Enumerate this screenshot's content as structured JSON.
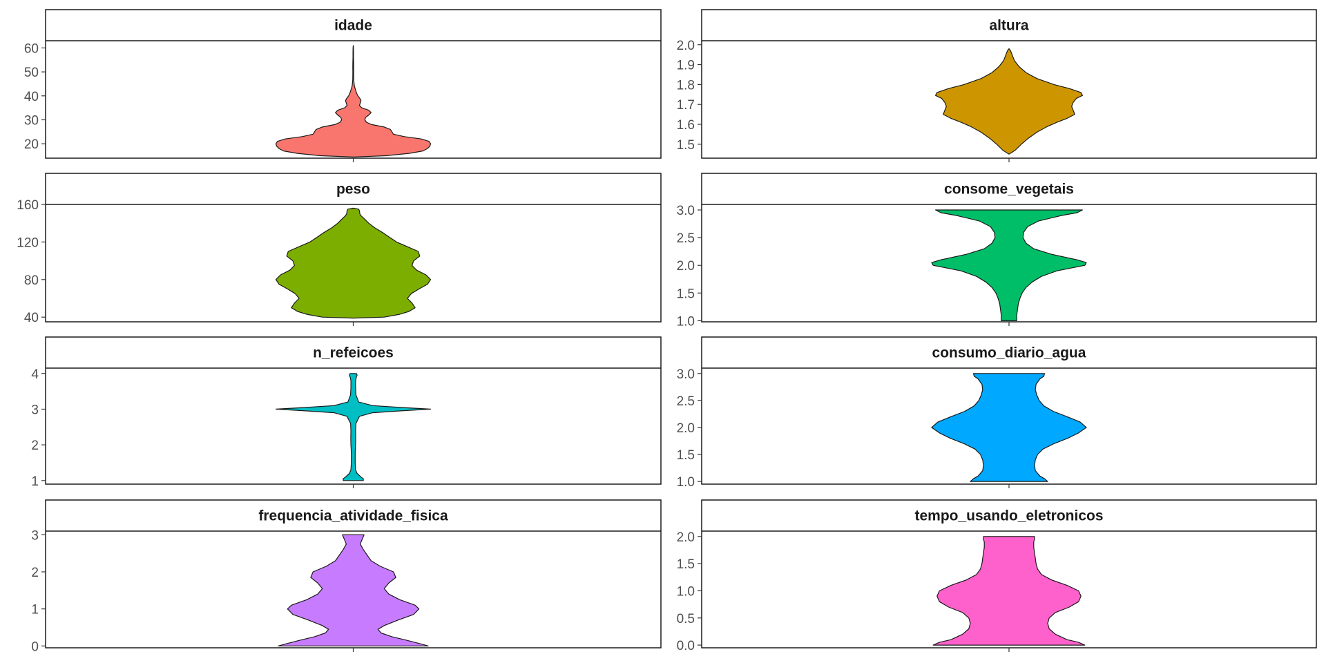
{
  "chart_data": [
    {
      "type": "violin",
      "title": "idade",
      "fill": "#F8766D",
      "yticks": [
        20,
        30,
        40,
        50,
        60
      ],
      "ylim": [
        14,
        63
      ],
      "profile": [
        [
          14.5,
          0
        ],
        [
          15,
          0.42
        ],
        [
          16,
          0.72
        ],
        [
          17,
          0.9
        ],
        [
          18,
          0.96
        ],
        [
          19,
          0.99
        ],
        [
          20,
          1
        ],
        [
          21,
          0.98
        ],
        [
          22,
          0.88
        ],
        [
          23,
          0.66
        ],
        [
          24,
          0.52
        ],
        [
          25,
          0.5
        ],
        [
          26,
          0.48
        ],
        [
          27,
          0.4
        ],
        [
          28,
          0.24
        ],
        [
          29,
          0.17
        ],
        [
          30,
          0.15
        ],
        [
          31,
          0.16
        ],
        [
          32,
          0.2
        ],
        [
          33,
          0.23
        ],
        [
          34,
          0.2
        ],
        [
          35,
          0.11
        ],
        [
          36,
          0.08
        ],
        [
          37,
          0.09
        ],
        [
          38,
          0.1
        ],
        [
          39,
          0.085
        ],
        [
          40,
          0.06
        ],
        [
          41,
          0.045
        ],
        [
          42,
          0.035
        ],
        [
          43,
          0.025
        ],
        [
          44,
          0.015
        ],
        [
          45,
          0.012
        ],
        [
          46,
          0.008
        ],
        [
          47,
          0.006
        ],
        [
          48,
          0.006
        ],
        [
          50,
          0.005
        ],
        [
          52,
          0.006
        ],
        [
          54,
          0.005
        ],
        [
          56,
          0.004
        ],
        [
          58,
          0.004
        ],
        [
          60,
          0.003
        ],
        [
          61,
          0
        ]
      ]
    },
    {
      "type": "violin",
      "title": "altura",
      "fill": "#CD9600",
      "yticks": [
        1.5,
        1.6,
        1.7,
        1.8,
        1.9,
        2.0
      ],
      "ylim": [
        1.43,
        2.02
      ],
      "profile": [
        [
          1.45,
          0
        ],
        [
          1.47,
          0.08
        ],
        [
          1.5,
          0.16
        ],
        [
          1.53,
          0.25
        ],
        [
          1.56,
          0.36
        ],
        [
          1.59,
          0.5
        ],
        [
          1.61,
          0.62
        ],
        [
          1.63,
          0.75
        ],
        [
          1.65,
          0.85
        ],
        [
          1.67,
          0.83
        ],
        [
          1.69,
          0.81
        ],
        [
          1.71,
          0.83
        ],
        [
          1.73,
          0.87
        ],
        [
          1.745,
          0.95
        ],
        [
          1.76,
          0.93
        ],
        [
          1.78,
          0.78
        ],
        [
          1.8,
          0.58
        ],
        [
          1.83,
          0.36
        ],
        [
          1.86,
          0.22
        ],
        [
          1.89,
          0.13
        ],
        [
          1.92,
          0.07
        ],
        [
          1.95,
          0.04
        ],
        [
          1.97,
          0.02
        ],
        [
          1.98,
          0
        ]
      ]
    },
    {
      "type": "violin",
      "title": "peso",
      "fill": "#7CAE00",
      "yticks": [
        40,
        80,
        120,
        160
      ],
      "ylim": [
        35,
        160
      ],
      "profile": [
        [
          39,
          0
        ],
        [
          40,
          0.4
        ],
        [
          43,
          0.6
        ],
        [
          46,
          0.72
        ],
        [
          50,
          0.8
        ],
        [
          55,
          0.76
        ],
        [
          60,
          0.7
        ],
        [
          65,
          0.75
        ],
        [
          70,
          0.85
        ],
        [
          75,
          0.96
        ],
        [
          80,
          1
        ],
        [
          85,
          0.94
        ],
        [
          90,
          0.82
        ],
        [
          95,
          0.76
        ],
        [
          100,
          0.78
        ],
        [
          105,
          0.86
        ],
        [
          110,
          0.84
        ],
        [
          115,
          0.7
        ],
        [
          120,
          0.56
        ],
        [
          125,
          0.47
        ],
        [
          130,
          0.38
        ],
        [
          135,
          0.28
        ],
        [
          140,
          0.2
        ],
        [
          145,
          0.14
        ],
        [
          148,
          0.1
        ],
        [
          150,
          0.085
        ],
        [
          153,
          0.08
        ],
        [
          155,
          0.07
        ],
        [
          156,
          0
        ]
      ]
    },
    {
      "type": "violin",
      "title": "consome_vegetais",
      "fill": "#00BE67",
      "yticks": [
        1.0,
        1.5,
        2.0,
        2.5,
        3.0
      ],
      "ylim": [
        0.98,
        3.1
      ],
      "profile": [
        [
          1.0,
          0.1
        ],
        [
          1.1,
          0.1
        ],
        [
          1.2,
          0.11
        ],
        [
          1.3,
          0.12
        ],
        [
          1.4,
          0.14
        ],
        [
          1.5,
          0.17
        ],
        [
          1.6,
          0.22
        ],
        [
          1.7,
          0.3
        ],
        [
          1.8,
          0.42
        ],
        [
          1.9,
          0.62
        ],
        [
          2.0,
          0.98
        ],
        [
          2.05,
          1
        ],
        [
          2.1,
          0.88
        ],
        [
          2.2,
          0.55
        ],
        [
          2.3,
          0.32
        ],
        [
          2.4,
          0.22
        ],
        [
          2.5,
          0.18
        ],
        [
          2.6,
          0.19
        ],
        [
          2.7,
          0.24
        ],
        [
          2.8,
          0.38
        ],
        [
          2.9,
          0.68
        ],
        [
          2.95,
          0.88
        ],
        [
          3.0,
          0.95
        ]
      ]
    },
    {
      "type": "violin",
      "title": "n_refeicoes",
      "fill": "#00BFC4",
      "yticks": [
        1,
        2,
        3,
        4
      ],
      "ylim": [
        0.9,
        4.15
      ],
      "profile": [
        [
          1.0,
          0.13
        ],
        [
          1.05,
          0.13
        ],
        [
          1.1,
          0.1
        ],
        [
          1.2,
          0.05
        ],
        [
          1.3,
          0.03
        ],
        [
          1.5,
          0.025
        ],
        [
          1.8,
          0.025
        ],
        [
          2.0,
          0.03
        ],
        [
          2.2,
          0.032
        ],
        [
          2.4,
          0.03
        ],
        [
          2.6,
          0.035
        ],
        [
          2.8,
          0.08
        ],
        [
          2.9,
          0.25
        ],
        [
          2.95,
          0.6
        ],
        [
          3.0,
          1
        ],
        [
          3.05,
          0.6
        ],
        [
          3.1,
          0.25
        ],
        [
          3.2,
          0.07
        ],
        [
          3.4,
          0.035
        ],
        [
          3.6,
          0.03
        ],
        [
          3.8,
          0.03
        ],
        [
          3.9,
          0.04
        ],
        [
          3.95,
          0.05
        ],
        [
          4.0,
          0.04
        ]
      ]
    },
    {
      "type": "violin",
      "title": "consumo_diario_agua",
      "fill": "#00A9FF",
      "yticks": [
        1.0,
        1.5,
        2.0,
        2.5,
        3.0
      ],
      "ylim": [
        0.95,
        3.1
      ],
      "profile": [
        [
          1.0,
          0.5
        ],
        [
          1.05,
          0.46
        ],
        [
          1.1,
          0.4
        ],
        [
          1.2,
          0.34
        ],
        [
          1.3,
          0.33
        ],
        [
          1.4,
          0.34
        ],
        [
          1.5,
          0.37
        ],
        [
          1.6,
          0.44
        ],
        [
          1.7,
          0.58
        ],
        [
          1.8,
          0.76
        ],
        [
          1.9,
          0.9
        ],
        [
          2.0,
          1
        ],
        [
          2.1,
          0.92
        ],
        [
          2.2,
          0.75
        ],
        [
          2.3,
          0.57
        ],
        [
          2.4,
          0.45
        ],
        [
          2.5,
          0.39
        ],
        [
          2.6,
          0.36
        ],
        [
          2.7,
          0.34
        ],
        [
          2.8,
          0.35
        ],
        [
          2.9,
          0.4
        ],
        [
          2.95,
          0.45
        ],
        [
          3.0,
          0.46
        ]
      ]
    },
    {
      "type": "violin",
      "title": "frequencia_atividade_fisica",
      "fill": "#C77CFF",
      "yticks": [
        0,
        1,
        2,
        3
      ],
      "ylim": [
        -0.05,
        3.1
      ],
      "profile": [
        [
          0,
          0.97
        ],
        [
          0.05,
          0.88
        ],
        [
          0.15,
          0.7
        ],
        [
          0.25,
          0.5
        ],
        [
          0.35,
          0.36
        ],
        [
          0.45,
          0.32
        ],
        [
          0.55,
          0.4
        ],
        [
          0.7,
          0.58
        ],
        [
          0.85,
          0.78
        ],
        [
          1.0,
          0.85
        ],
        [
          1.1,
          0.8
        ],
        [
          1.25,
          0.6
        ],
        [
          1.4,
          0.46
        ],
        [
          1.55,
          0.4
        ],
        [
          1.7,
          0.46
        ],
        [
          1.85,
          0.55
        ],
        [
          2.0,
          0.52
        ],
        [
          2.15,
          0.35
        ],
        [
          2.3,
          0.23
        ],
        [
          2.45,
          0.18
        ],
        [
          2.6,
          0.13
        ],
        [
          2.75,
          0.09
        ],
        [
          2.9,
          0.12
        ],
        [
          3.0,
          0.14
        ]
      ]
    },
    {
      "type": "violin",
      "title": "tempo_usando_eletronicos",
      "fill": "#FF61CC",
      "yticks": [
        0.0,
        0.5,
        1.0,
        1.5,
        2.0
      ],
      "ylim": [
        -0.05,
        2.1
      ],
      "profile": [
        [
          0.0,
          0.98
        ],
        [
          0.05,
          0.9
        ],
        [
          0.1,
          0.75
        ],
        [
          0.2,
          0.6
        ],
        [
          0.3,
          0.52
        ],
        [
          0.4,
          0.5
        ],
        [
          0.5,
          0.52
        ],
        [
          0.6,
          0.6
        ],
        [
          0.7,
          0.78
        ],
        [
          0.8,
          0.9
        ],
        [
          0.9,
          0.93
        ],
        [
          1.0,
          0.9
        ],
        [
          1.1,
          0.75
        ],
        [
          1.2,
          0.55
        ],
        [
          1.3,
          0.42
        ],
        [
          1.4,
          0.37
        ],
        [
          1.5,
          0.35
        ],
        [
          1.6,
          0.34
        ],
        [
          1.7,
          0.33
        ],
        [
          1.8,
          0.32
        ],
        [
          1.9,
          0.32
        ],
        [
          1.95,
          0.33
        ],
        [
          2.0,
          0.33
        ]
      ]
    }
  ]
}
